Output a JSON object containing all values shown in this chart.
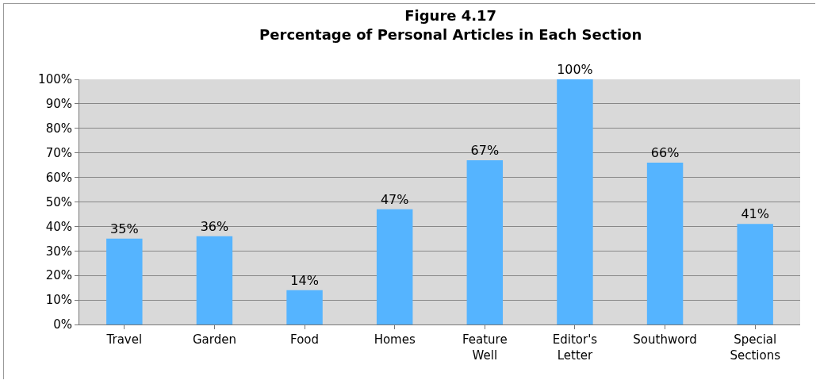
{
  "chart_data": {
    "type": "bar",
    "title": "Figure 4.17\nPercentage of Personal Articles in Each Section",
    "categories": [
      "Travel",
      "Garden",
      "Food",
      "Homes",
      "Feature\nWell",
      "Editor's\nLetter",
      "Southword",
      "Special\nSections"
    ],
    "values": [
      35,
      36,
      14,
      47,
      67,
      100,
      66,
      41
    ],
    "value_labels": [
      "35%",
      "36%",
      "14%",
      "47%",
      "67%",
      "100%",
      "66%",
      "41%"
    ],
    "color": "#55b4ff",
    "ylim": [
      0,
      100
    ],
    "yticks": [
      {
        "value": 0,
        "label": "0%"
      },
      {
        "value": 10,
        "label": "10%"
      },
      {
        "value": 20,
        "label": "20%"
      },
      {
        "value": 30,
        "label": "30%"
      },
      {
        "value": 40,
        "label": "40%"
      },
      {
        "value": 50,
        "label": "50%"
      },
      {
        "value": 60,
        "label": "60%"
      },
      {
        "value": 70,
        "label": "70%"
      },
      {
        "value": 80,
        "label": "80%"
      },
      {
        "value": 90,
        "label": "90%"
      },
      {
        "value": 100,
        "label": "100%"
      }
    ],
    "grid": "y",
    "legend": false
  }
}
